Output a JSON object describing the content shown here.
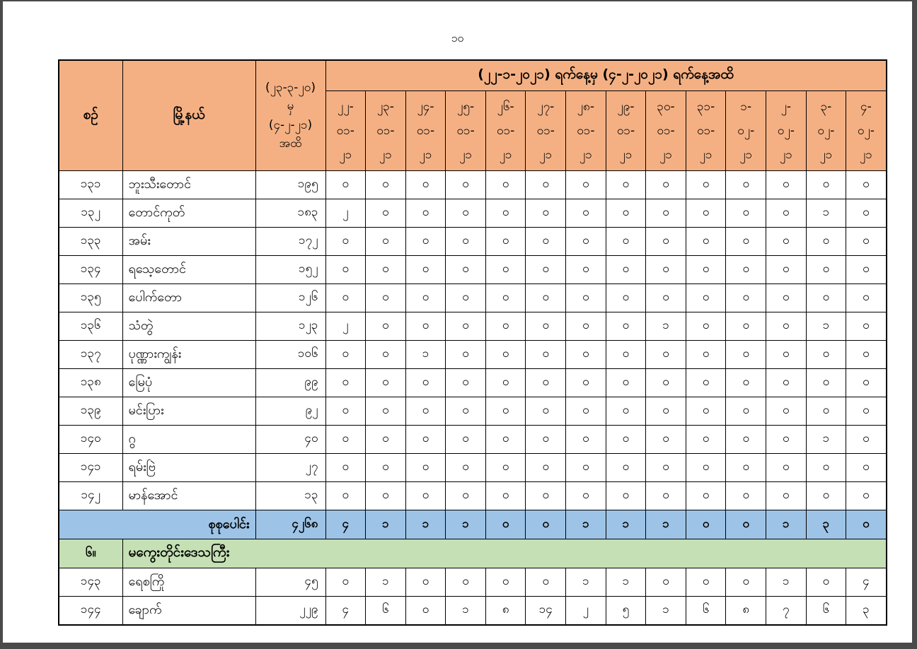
{
  "page_number": "၁၀",
  "colors": {
    "header_bg": "#F4B083",
    "total_row_bg": "#9DC3E6",
    "section_row_bg": "#C5E0B4",
    "border": "#000000"
  },
  "table": {
    "headers": {
      "serial": "စဉ်",
      "township": "မြို့နယ်",
      "cumulative": "(၂၃-၃-၂၀)\nမှ\n(၄-၂-၂၁)\nအထိ",
      "date_range": "(၂၂-၁-၂၀၂၁) ရက်နေ့မှ (၄-၂-၂၀၂၁) ရက်နေ့အထိ",
      "date_columns": [
        "၂၂-\n၀၁-\n၂၁",
        "၂၃-\n၀၁-\n၂၁",
        "၂၄-\n၀၁-\n၂၁",
        "၂၅-\n၀၁-\n၂၁",
        "၂၆-\n၀၁-\n၂၁",
        "၂၇-\n၀၁-\n၂၁",
        "၂၈-\n၀၁-\n၂၁",
        "၂၉-\n၀၁-\n၂၁",
        "၃၀-\n၀၁-\n၂၁",
        "၃၁-\n၀၁-\n၂၁",
        "၁-\n၀၂-\n၂၁",
        "၂-\n၀၂-\n၂၁",
        "၃-\n၀၂-\n၂၁",
        "၄-\n၀၂-\n၂၁"
      ]
    },
    "rows": [
      {
        "serial": "၁၃၁",
        "township": "ဘူးသီးတောင်",
        "cumulative": "၁၉၅",
        "daily": [
          "၀",
          "၀",
          "၀",
          "၀",
          "၀",
          "၀",
          "၀",
          "၀",
          "၀",
          "၀",
          "၀",
          "၀",
          "၀",
          "၀"
        ]
      },
      {
        "serial": "၁၃၂",
        "township": "တောင်ကုတ်",
        "cumulative": "၁၈၃",
        "daily": [
          "၂",
          "၀",
          "၀",
          "၀",
          "၀",
          "၀",
          "၀",
          "၀",
          "၀",
          "၀",
          "၀",
          "၀",
          "၁",
          "၀"
        ]
      },
      {
        "serial": "၁၃၃",
        "township": "အမ်း",
        "cumulative": "၁၇၂",
        "daily": [
          "၀",
          "၀",
          "၀",
          "၀",
          "၀",
          "၀",
          "၀",
          "၀",
          "၀",
          "၀",
          "၀",
          "၀",
          "၀",
          "၀"
        ]
      },
      {
        "serial": "၁၃၄",
        "township": "ရသေ့တောင်",
        "cumulative": "၁၅၂",
        "daily": [
          "၀",
          "၀",
          "၀",
          "၀",
          "၀",
          "၀",
          "၀",
          "၀",
          "၀",
          "၀",
          "၀",
          "၀",
          "၀",
          "၀"
        ]
      },
      {
        "serial": "၁၃၅",
        "township": "ပေါက်တော",
        "cumulative": "၁၂၆",
        "daily": [
          "၀",
          "၀",
          "၀",
          "၀",
          "၀",
          "၀",
          "၀",
          "၀",
          "၀",
          "၀",
          "၀",
          "၀",
          "၀",
          "၀"
        ]
      },
      {
        "serial": "၁၃၆",
        "township": "သံတွဲ",
        "cumulative": "၁၂၃",
        "daily": [
          "၂",
          "၀",
          "၀",
          "၀",
          "၀",
          "၀",
          "၀",
          "၀",
          "၁",
          "၀",
          "၀",
          "၀",
          "၁",
          "၀"
        ]
      },
      {
        "serial": "၁၃၇",
        "township": "ပုဏ္ဏားကျွန်း",
        "cumulative": "၁၀၆",
        "daily": [
          "၀",
          "၀",
          "၁",
          "၀",
          "၀",
          "၀",
          "၀",
          "၀",
          "၀",
          "၀",
          "၀",
          "၀",
          "၀",
          "၀"
        ]
      },
      {
        "serial": "၁၃၈",
        "township": "မြေပုံ",
        "cumulative": "၉၉",
        "daily": [
          "၀",
          "၀",
          "၀",
          "၀",
          "၀",
          "၀",
          "၀",
          "၀",
          "၀",
          "၀",
          "၀",
          "၀",
          "၀",
          "၀"
        ]
      },
      {
        "serial": "၁၃၉",
        "township": "မင်းပြား",
        "cumulative": "၉၂",
        "daily": [
          "၀",
          "၀",
          "၀",
          "၀",
          "၀",
          "၀",
          "၀",
          "၀",
          "၀",
          "၀",
          "၀",
          "၀",
          "၀",
          "၀"
        ]
      },
      {
        "serial": "၁၄၀",
        "township": "ဂွ",
        "cumulative": "၄၀",
        "daily": [
          "၀",
          "၀",
          "၀",
          "၀",
          "၀",
          "၀",
          "၀",
          "၀",
          "၀",
          "၀",
          "၀",
          "၀",
          "၁",
          "၀"
        ]
      },
      {
        "serial": "၁၄၁",
        "township": "ရမ်းဗြဲ",
        "cumulative": "၂၇",
        "daily": [
          "၀",
          "၀",
          "၀",
          "၀",
          "၀",
          "၀",
          "၀",
          "၀",
          "၀",
          "၀",
          "၀",
          "၀",
          "၀",
          "၀"
        ]
      },
      {
        "serial": "၁၄၂",
        "township": "မာန်အောင်",
        "cumulative": "၁၃",
        "daily": [
          "၀",
          "၀",
          "၀",
          "၀",
          "၀",
          "၀",
          "၀",
          "၀",
          "၀",
          "၀",
          "၀",
          "၀",
          "၀",
          "၀"
        ]
      }
    ],
    "total_row": {
      "label": "စုစုပေါင်း",
      "cumulative": "၄၂၆၈",
      "daily": [
        "၄",
        "၁",
        "၁",
        "၁",
        "၀",
        "၀",
        "၁",
        "၁",
        "၁",
        "၀",
        "၀",
        "၁",
        "၃",
        "၀"
      ]
    },
    "section_row": {
      "serial": "၆။",
      "label": "မကွေးတိုင်းဒေသကြီး"
    },
    "rows_after_section": [
      {
        "serial": "၁၄၃",
        "township": "ရေစကြို",
        "cumulative": "၄၅",
        "daily": [
          "၀",
          "၁",
          "၀",
          "၀",
          "၀",
          "၀",
          "၁",
          "၁",
          "၀",
          "၀",
          "၀",
          "၁",
          "၀",
          "၄"
        ]
      },
      {
        "serial": "၁၄၄",
        "township": "ချောက်",
        "cumulative": "၂၂၉",
        "daily": [
          "၄",
          "၆",
          "၀",
          "၁",
          "၈",
          "၁၄",
          "၂",
          "၅",
          "၁",
          "၆",
          "၈",
          "၇",
          "၆",
          "၃"
        ]
      }
    ]
  }
}
